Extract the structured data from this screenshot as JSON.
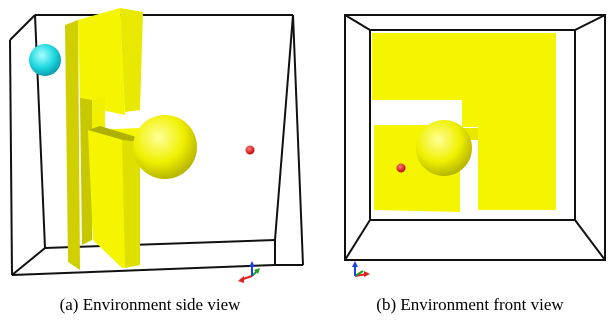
{
  "figure": {
    "panels": [
      {
        "view": "side",
        "caption": "(a) Environment side view"
      },
      {
        "view": "front",
        "caption": "(b) Environment front view"
      }
    ],
    "colors": {
      "obstacle": "#f5f500",
      "obstacle_shade": "#c8c800",
      "sphere_small": "#22d8e0",
      "goal_point": "#e01010",
      "box_edge": "#111111",
      "axis_x": "#e02020",
      "axis_y": "#20a020",
      "axis_z": "#2040e0"
    },
    "icons": [
      "axis-triad-icon"
    ]
  }
}
